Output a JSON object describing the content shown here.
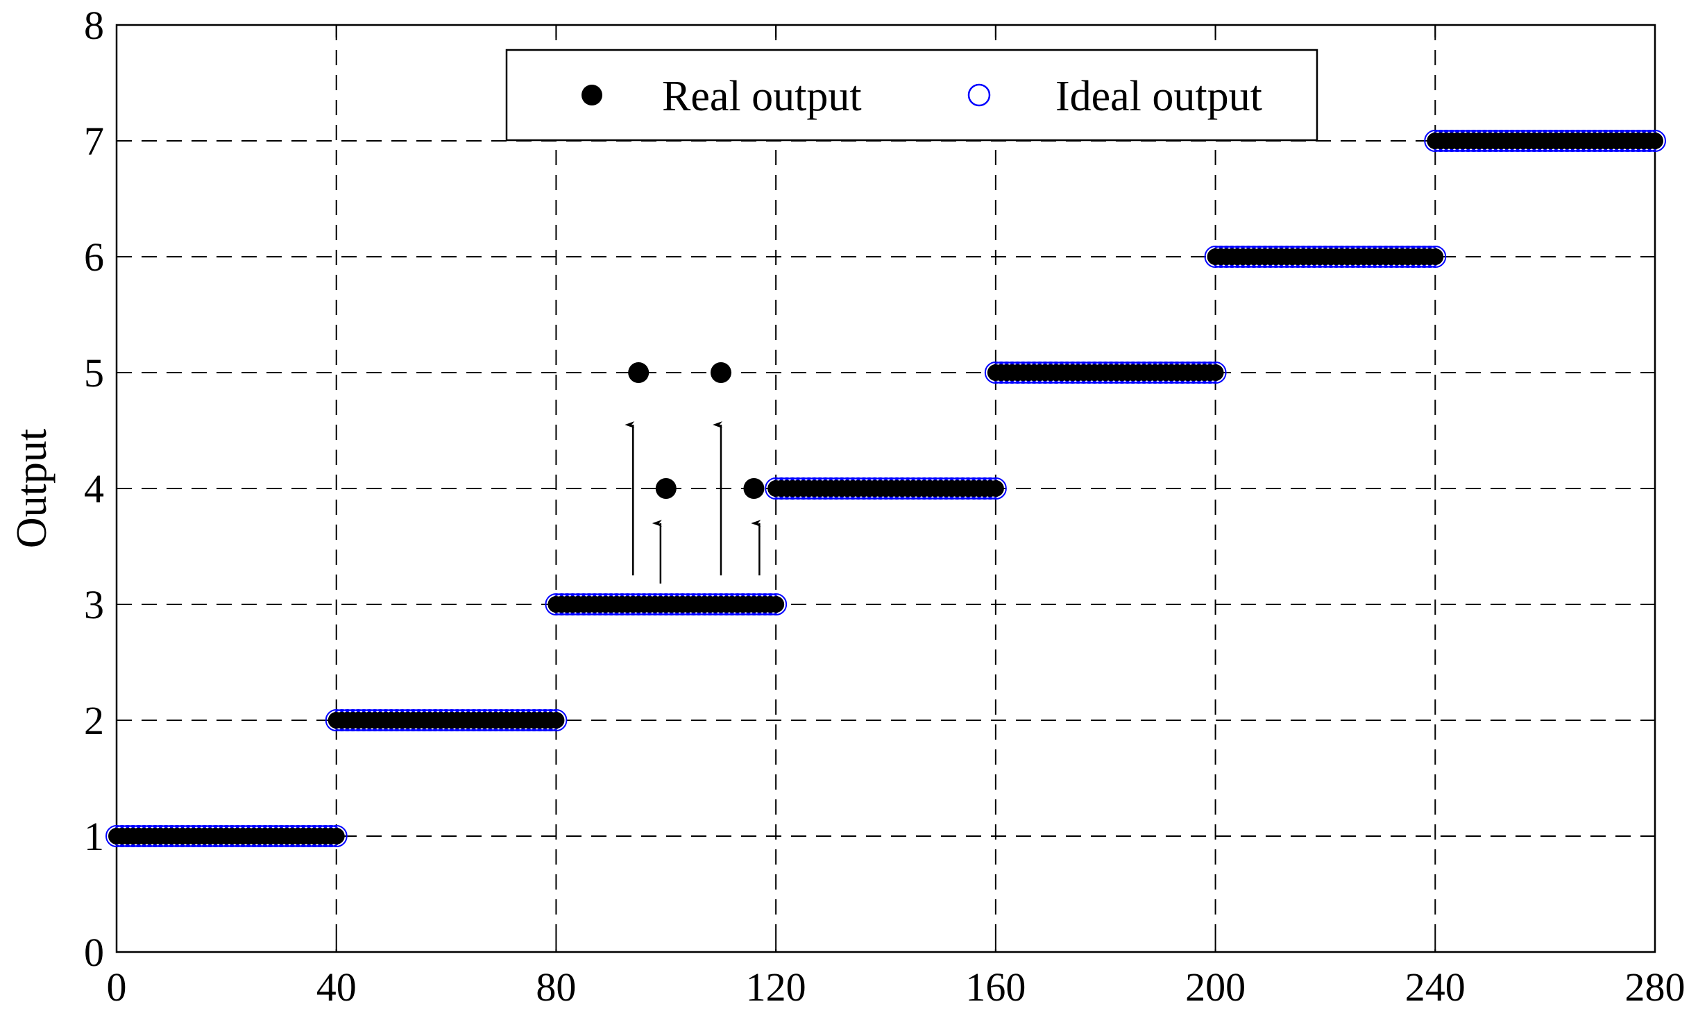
{
  "chart_data": {
    "type": "scatter",
    "title": "",
    "xlabel": "",
    "ylabel": "Output",
    "xlim": [
      0,
      280
    ],
    "ylim": [
      0,
      8
    ],
    "xticks": [
      0,
      40,
      80,
      120,
      160,
      200,
      240,
      280
    ],
    "yticks": [
      0,
      1,
      2,
      3,
      4,
      5,
      6,
      7,
      8
    ],
    "grid": true,
    "legend_placement": "top-center",
    "colors": {
      "real": "#000000",
      "ideal": "#0000ff",
      "grid": "#000000"
    },
    "series": [
      {
        "name": "Real output",
        "marker": "filled-circle",
        "step_levels": [
          {
            "x_start": 0,
            "x_end": 40,
            "y": 1
          },
          {
            "x_start": 40,
            "x_end": 80,
            "y": 2
          },
          {
            "x_start": 80,
            "x_end": 120,
            "y": 3
          },
          {
            "x_start": 120,
            "x_end": 160,
            "y": 4
          },
          {
            "x_start": 160,
            "x_end": 200,
            "y": 5
          },
          {
            "x_start": 200,
            "x_end": 240,
            "y": 6
          },
          {
            "x_start": 240,
            "x_end": 280,
            "y": 7
          }
        ],
        "outliers": [
          {
            "x": 95,
            "y": 5
          },
          {
            "x": 100,
            "y": 4
          },
          {
            "x": 110,
            "y": 5
          },
          {
            "x": 116,
            "y": 4
          }
        ]
      },
      {
        "name": "Ideal output",
        "marker": "open-circle",
        "step_levels": [
          {
            "x_start": 0,
            "x_end": 40,
            "y": 1
          },
          {
            "x_start": 40,
            "x_end": 80,
            "y": 2
          },
          {
            "x_start": 80,
            "x_end": 120,
            "y": 3
          },
          {
            "x_start": 120,
            "x_end": 160,
            "y": 4
          },
          {
            "x_start": 160,
            "x_end": 200,
            "y": 5
          },
          {
            "x_start": 200,
            "x_end": 240,
            "y": 6
          },
          {
            "x_start": 240,
            "x_end": 280,
            "y": 7
          }
        ]
      }
    ],
    "annotations": [
      {
        "type": "arrow",
        "x": 94,
        "y_from": 3.25,
        "y_to": 4.55
      },
      {
        "type": "arrow",
        "x": 99,
        "y_from": 3.18,
        "y_to": 3.7
      },
      {
        "type": "arrow",
        "x": 110,
        "y_from": 3.25,
        "y_to": 4.55
      },
      {
        "type": "arrow",
        "x": 117,
        "y_from": 3.25,
        "y_to": 3.7
      }
    ]
  }
}
